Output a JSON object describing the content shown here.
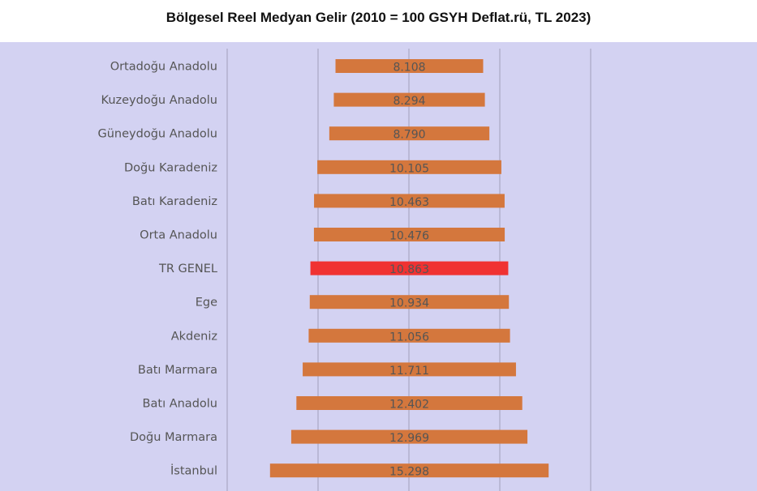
{
  "title": "Bölgesel Reel Medyan Gelir (2010 = 100 GSYH Deflat.rü, TL 2023)",
  "colors": {
    "background": "#d3d2f2",
    "bar": "#d4773d",
    "highlight": "#f03232",
    "grid": "#a9a8c4",
    "label": "#555555",
    "value_label": "#555555"
  },
  "chart_data": {
    "type": "bar",
    "orientation": "horizontal",
    "style": "centered-floating",
    "title": "Bölgesel Reel Medyan Gelir (2010 = 100 GSYH Deflat.rü, TL 2023)",
    "categories": [
      "Ortadoğu Anadolu",
      "Kuzeydoğu Anadolu",
      "Güneydoğu Anadolu",
      "Doğu Karadeniz",
      "Batı Karadeniz",
      "Orta Anadolu",
      "TR GENEL",
      "Ege",
      "Akdeniz",
      "Batı Marmara",
      "Batı Anadolu",
      "Doğu Marmara",
      "İstanbul"
    ],
    "values": [
      8108,
      8294,
      8790,
      10105,
      10463,
      10476,
      10863,
      10934,
      11056,
      11711,
      12402,
      12969,
      15298
    ],
    "value_labels": [
      "8.108",
      "8.294",
      "8.790",
      "10.105",
      "10.463",
      "10.476",
      "10.863",
      "10.934",
      "11.056",
      "11.711",
      "12.402",
      "12.969",
      "15.298"
    ],
    "highlight_category": "TR GENEL",
    "grid": true,
    "legend": "none"
  }
}
